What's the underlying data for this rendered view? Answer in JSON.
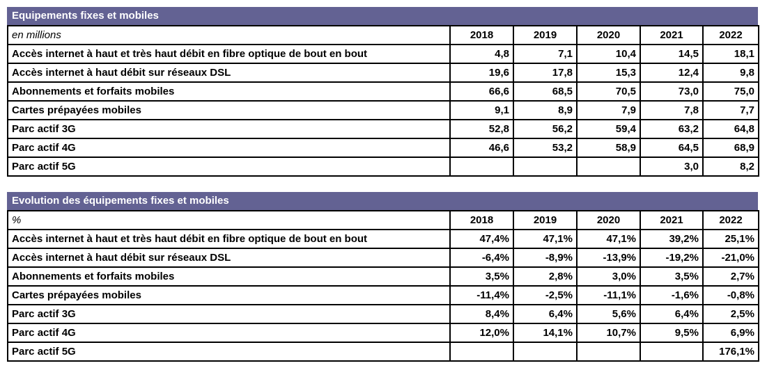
{
  "colors": {
    "page_bg": "#ffffff",
    "title_bar_bg": "#636293",
    "title_bar_text": "#ffffff",
    "table_border": "#000000",
    "cell_text": "#000000"
  },
  "tables": [
    {
      "title": "Equipements fixes et mobiles",
      "unit_label": "en millions",
      "columns": [
        "2018",
        "2019",
        "2020",
        "2021",
        "2022"
      ],
      "rows": [
        {
          "label": "Accès internet à haut et très haut débit en fibre optique de bout en bout",
          "values": [
            "4,8",
            "7,1",
            "10,4",
            "14,5",
            "18,1"
          ]
        },
        {
          "label": "Accès internet à haut débit sur réseaux DSL",
          "values": [
            "19,6",
            "17,8",
            "15,3",
            "12,4",
            "9,8"
          ]
        },
        {
          "label": "Abonnements et forfaits mobiles",
          "values": [
            "66,6",
            "68,5",
            "70,5",
            "73,0",
            "75,0"
          ]
        },
        {
          "label": "Cartes prépayées mobiles",
          "values": [
            "9,1",
            "8,9",
            "7,9",
            "7,8",
            "7,7"
          ]
        },
        {
          "label": "Parc actif 3G",
          "values": [
            "52,8",
            "56,2",
            "59,4",
            "63,2",
            "64,8"
          ]
        },
        {
          "label": "Parc actif 4G",
          "values": [
            "46,6",
            "53,2",
            "58,9",
            "64,5",
            "68,9"
          ]
        },
        {
          "label": "Parc actif 5G",
          "values": [
            "",
            "",
            "",
            "3,0",
            "8,2"
          ]
        }
      ]
    },
    {
      "title": "Evolution des équipements fixes et mobiles",
      "unit_label": "%",
      "columns": [
        "2018",
        "2019",
        "2020",
        "2021",
        "2022"
      ],
      "rows": [
        {
          "label": "Accès internet à haut et très haut débit en fibre optique de bout en bout",
          "values": [
            "47,4%",
            "47,1%",
            "47,1%",
            "39,2%",
            "25,1%"
          ]
        },
        {
          "label": "Accès internet à haut débit sur réseaux DSL",
          "values": [
            "-6,4%",
            "-8,9%",
            "-13,9%",
            "-19,2%",
            "-21,0%"
          ]
        },
        {
          "label": "Abonnements et forfaits mobiles",
          "values": [
            "3,5%",
            "2,8%",
            "3,0%",
            "3,5%",
            "2,7%"
          ]
        },
        {
          "label": "Cartes prépayées mobiles",
          "values": [
            "-11,4%",
            "-2,5%",
            "-11,1%",
            "-1,6%",
            "-0,8%"
          ]
        },
        {
          "label": "Parc actif 3G",
          "values": [
            "8,4%",
            "6,4%",
            "5,6%",
            "6,4%",
            "2,5%"
          ]
        },
        {
          "label": "Parc actif 4G",
          "values": [
            "12,0%",
            "14,1%",
            "10,7%",
            "9,5%",
            "6,9%"
          ]
        },
        {
          "label": "Parc actif 5G",
          "values": [
            "",
            "",
            "",
            "",
            "176,1%"
          ]
        }
      ]
    }
  ],
  "chart_data": [
    {
      "type": "table",
      "title": "Equipements fixes et mobiles",
      "unit": "en millions",
      "categories": [
        "2018",
        "2019",
        "2020",
        "2021",
        "2022"
      ],
      "series": [
        {
          "name": "Accès internet à haut et très haut débit en fibre optique de bout en bout",
          "values": [
            4.8,
            7.1,
            10.4,
            14.5,
            18.1
          ]
        },
        {
          "name": "Accès internet à haut débit sur réseaux DSL",
          "values": [
            19.6,
            17.8,
            15.3,
            12.4,
            9.8
          ]
        },
        {
          "name": "Abonnements et forfaits mobiles",
          "values": [
            66.6,
            68.5,
            70.5,
            73.0,
            75.0
          ]
        },
        {
          "name": "Cartes prépayées mobiles",
          "values": [
            9.1,
            8.9,
            7.9,
            7.8,
            7.7
          ]
        },
        {
          "name": "Parc actif 3G",
          "values": [
            52.8,
            56.2,
            59.4,
            63.2,
            64.8
          ]
        },
        {
          "name": "Parc actif 4G",
          "values": [
            46.6,
            53.2,
            58.9,
            64.5,
            68.9
          ]
        },
        {
          "name": "Parc actif 5G",
          "values": [
            null,
            null,
            null,
            3.0,
            8.2
          ]
        }
      ]
    },
    {
      "type": "table",
      "title": "Evolution des équipements fixes et mobiles",
      "unit": "%",
      "categories": [
        "2018",
        "2019",
        "2020",
        "2021",
        "2022"
      ],
      "series": [
        {
          "name": "Accès internet à haut et très haut débit en fibre optique de bout en bout",
          "values": [
            47.4,
            47.1,
            47.1,
            39.2,
            25.1
          ]
        },
        {
          "name": "Accès internet à haut débit sur réseaux DSL",
          "values": [
            -6.4,
            -8.9,
            -13.9,
            -19.2,
            -21.0
          ]
        },
        {
          "name": "Abonnements et forfaits mobiles",
          "values": [
            3.5,
            2.8,
            3.0,
            3.5,
            2.7
          ]
        },
        {
          "name": "Cartes prépayées mobiles",
          "values": [
            -11.4,
            -2.5,
            -11.1,
            -1.6,
            -0.8
          ]
        },
        {
          "name": "Parc actif 3G",
          "values": [
            8.4,
            6.4,
            5.6,
            6.4,
            2.5
          ]
        },
        {
          "name": "Parc actif 4G",
          "values": [
            12.0,
            14.1,
            10.7,
            9.5,
            6.9
          ]
        },
        {
          "name": "Parc actif 5G",
          "values": [
            null,
            null,
            null,
            null,
            176.1
          ]
        }
      ]
    }
  ]
}
